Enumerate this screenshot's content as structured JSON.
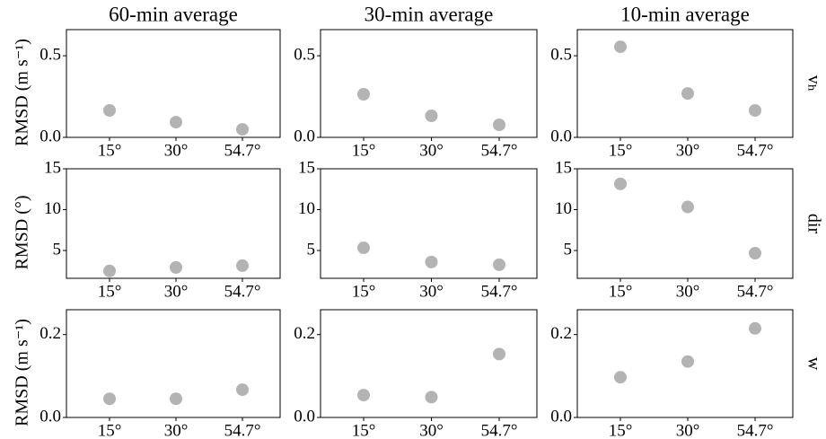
{
  "chart_data": [
    {
      "type": "scatter",
      "title": "60-min average",
      "ylabel": "RMSD (m s⁻¹)",
      "categories": [
        "15°",
        "30°",
        "54.7°"
      ],
      "values": [
        0.165,
        0.093,
        0.049
      ],
      "color": "#b3b3b3",
      "ylim": [
        0,
        0.66
      ],
      "yticks": [
        {
          "value": 0,
          "label": "0.0"
        },
        0.5
      ]
    },
    {
      "type": "scatter",
      "title": "30-min average",
      "categories": [
        "15°",
        "30°",
        "54.7°"
      ],
      "values": [
        0.264,
        0.132,
        0.077
      ],
      "color": "#b3b3b3",
      "ylim": [
        0,
        0.66
      ],
      "yticks": [
        {
          "value": 0,
          "label": "0.0"
        },
        0.5
      ]
    },
    {
      "type": "scatter",
      "title": "10-min average",
      "row_label": "vₕ",
      "categories": [
        "15°",
        "30°",
        "54.7°"
      ],
      "values": [
        0.555,
        0.269,
        0.165
      ],
      "color": "#b3b3b3",
      "ylim": [
        0,
        0.66
      ],
      "yticks": [
        {
          "value": 0,
          "label": "0.0"
        },
        0.5
      ]
    },
    {
      "type": "scatter",
      "ylabel": "RMSD (°)",
      "categories": [
        "15°",
        "30°",
        "54.7°"
      ],
      "values": [
        2.5,
        2.93,
        3.15
      ],
      "color": "#b3b3b3",
      "ylim": [
        1.6,
        15
      ],
      "yticks": [
        5,
        10,
        15
      ]
    },
    {
      "type": "scatter",
      "categories": [
        "15°",
        "30°",
        "54.7°"
      ],
      "values": [
        5.33,
        3.59,
        3.26
      ],
      "color": "#b3b3b3",
      "ylim": [
        1.6,
        15
      ],
      "yticks": [
        5,
        10,
        15
      ]
    },
    {
      "type": "scatter",
      "row_label": "dir",
      "categories": [
        "15°",
        "30°",
        "54.7°"
      ],
      "values": [
        13.15,
        10.33,
        4.67
      ],
      "color": "#b3b3b3",
      "ylim": [
        1.6,
        15
      ],
      "yticks": [
        5,
        10,
        15
      ]
    },
    {
      "type": "scatter",
      "ylabel": "RMSD (m s⁻¹)",
      "categories": [
        "15°",
        "30°",
        "54.7°"
      ],
      "values": [
        0.045,
        0.045,
        0.067
      ],
      "color": "#b3b3b3",
      "ylim": [
        0,
        0.26
      ],
      "yticks": [
        {
          "value": 0,
          "label": "0.0"
        },
        0.2
      ]
    },
    {
      "type": "scatter",
      "categories": [
        "15°",
        "30°",
        "54.7°"
      ],
      "values": [
        0.054,
        0.049,
        0.153
      ],
      "color": "#b3b3b3",
      "ylim": [
        0,
        0.26
      ],
      "yticks": [
        {
          "value": 0,
          "label": "0.0"
        },
        0.2
      ]
    },
    {
      "type": "scatter",
      "row_label": "w",
      "categories": [
        "15°",
        "30°",
        "54.7°"
      ],
      "values": [
        0.097,
        0.135,
        0.215
      ],
      "color": "#b3b3b3",
      "ylim": [
        0,
        0.26
      ],
      "yticks": [
        {
          "value": 0,
          "label": "0.0"
        },
        0.2
      ]
    }
  ]
}
